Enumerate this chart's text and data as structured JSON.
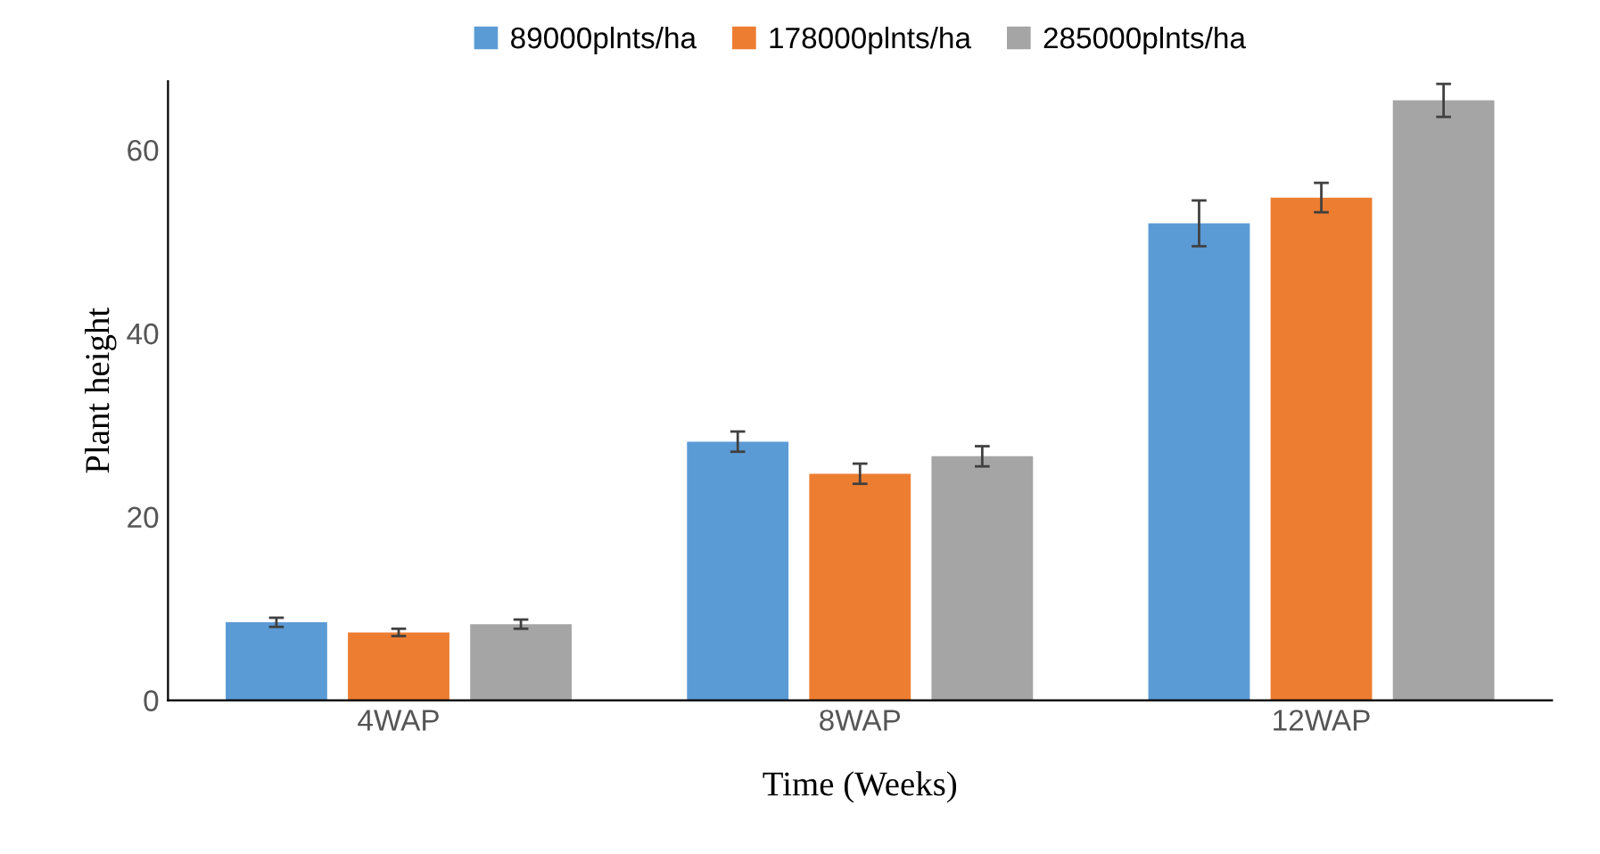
{
  "chart_data": {
    "type": "bar",
    "xlabel": "Time (Weeks)",
    "ylabel": "Plant height",
    "categories": [
      "4WAP",
      "8WAP",
      "12WAP"
    ],
    "series": [
      {
        "name": "89000plnts/ha",
        "color": "#5b9bd5",
        "values": [
          8.5,
          28.2,
          52.0
        ],
        "errors": [
          0.5,
          1.1,
          2.5
        ]
      },
      {
        "name": "178000plnts/ha",
        "color": "#ed7d31",
        "values": [
          7.4,
          24.7,
          54.8
        ],
        "errors": [
          0.4,
          1.1,
          1.6
        ]
      },
      {
        "name": "285000plnts/ha",
        "color": "#a5a5a5",
        "values": [
          8.3,
          26.6,
          65.4
        ],
        "errors": [
          0.5,
          1.1,
          1.8
        ]
      }
    ],
    "ylim": [
      0,
      67.5
    ],
    "yticks": [
      0,
      20,
      40,
      60
    ],
    "grid": false,
    "legend": "top"
  }
}
